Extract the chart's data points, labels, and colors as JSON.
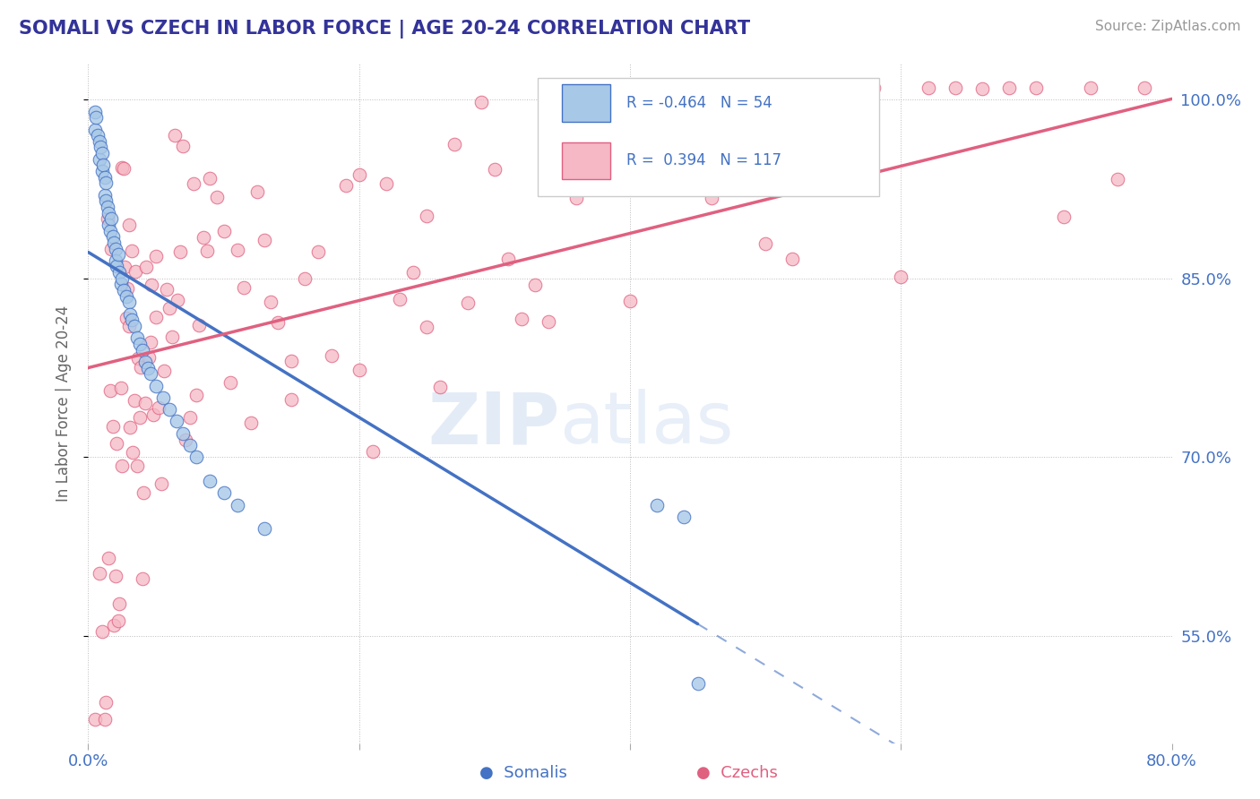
{
  "title": "SOMALI VS CZECH IN LABOR FORCE | AGE 20-24 CORRELATION CHART",
  "source_text": "Source: ZipAtlas.com",
  "ylabel": "In Labor Force | Age 20-24",
  "legend_somali": "Somalis",
  "legend_czech": "Czechs",
  "r_somali": -0.464,
  "n_somali": 54,
  "r_czech": 0.394,
  "n_czech": 117,
  "somali_color": "#a8c8e8",
  "czech_color": "#f5b8c4",
  "somali_line_color": "#4472c4",
  "czech_line_color": "#e06080",
  "xlim": [
    0.0,
    0.8
  ],
  "ylim": [
    0.46,
    1.03
  ],
  "yticks": [
    0.55,
    0.7,
    0.85,
    1.0
  ],
  "ytick_labels": [
    "55.0%",
    "70.0%",
    "85.0%",
    "100.0%"
  ],
  "xticks": [
    0.0,
    0.2,
    0.4,
    0.6,
    0.8
  ],
  "xtick_labels": [
    "0.0%",
    "",
    "",
    "",
    "80.0%"
  ],
  "grid_color": "#bbbbbb",
  "background_color": "#ffffff",
  "title_color": "#333399",
  "tick_color": "#4472c4",
  "ylabel_color": "#666666",
  "source_color": "#999999"
}
